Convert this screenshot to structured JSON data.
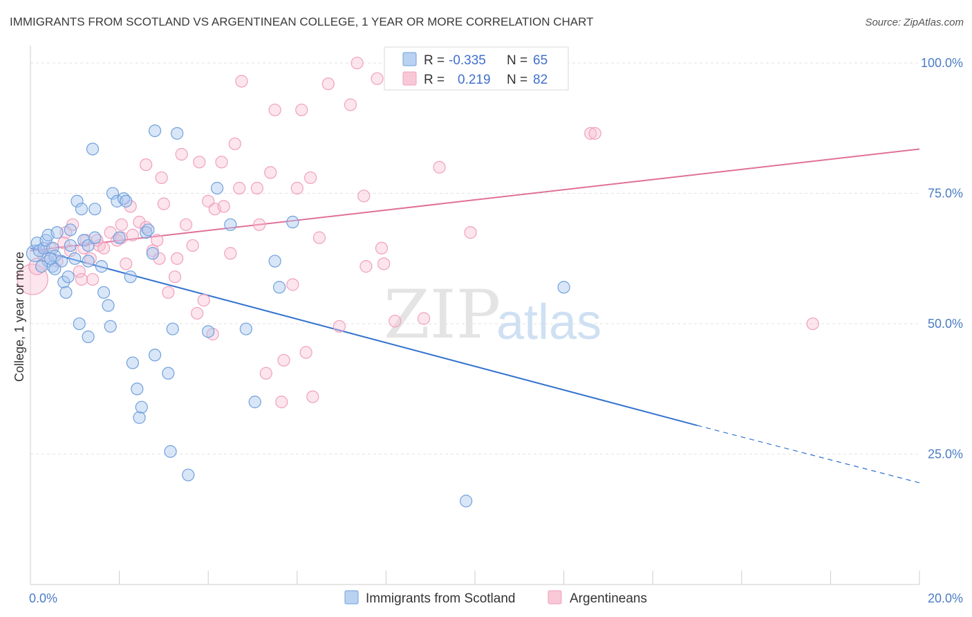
{
  "title": "IMMIGRANTS FROM SCOTLAND VS ARGENTINEAN COLLEGE, 1 YEAR OR MORE CORRELATION CHART",
  "source": "Source: ZipAtlas.com",
  "watermark": {
    "zip": "ZIP",
    "atlas": "atlas"
  },
  "colors": {
    "blue": "#6fa0dc",
    "blue_line": "#3473cf",
    "pink": "#f0a0bd",
    "pink_line": "#e07099",
    "tick": "#4a7cc4"
  },
  "legend": {
    "blue": {
      "r_label": "R =",
      "r_value": "-0.335",
      "n_label": "N =",
      "n_value": "65"
    },
    "pink": {
      "r_label": "R =",
      "r_value": "0.219",
      "n_label": "N =",
      "n_value": "82"
    }
  },
  "bottom_legend": [
    "Immigrants from Scotland",
    "Argentineans"
  ],
  "chart_data": {
    "type": "scatter",
    "title": "IMMIGRANTS FROM SCOTLAND VS ARGENTINEAN COLLEGE, 1 YEAR OR MORE CORRELATION CHART",
    "xlabel": "",
    "ylabel": "College, 1 year or more",
    "xlim": [
      0,
      20
    ],
    "ylim": [
      0,
      102
    ],
    "x_tick_labels": [
      "0.0%",
      "20.0%"
    ],
    "y_ticks": [
      25,
      50,
      75,
      100
    ],
    "y_tick_labels": [
      "25.0%",
      "50.0%",
      "75.0%",
      "100.0%"
    ],
    "grid": "horizontal dashed",
    "legend_position": "top-center",
    "series": [
      {
        "name": "Immigrants from Scotland",
        "color": "#6fa0dc",
        "r": -0.335,
        "n": 65,
        "trend": {
          "x0": 0.0,
          "y0": 64.5,
          "x1": 15.0,
          "y1": 30.5,
          "dash_to_x": 20.0,
          "dash_to_y": 19.5
        },
        "points": [
          [
            0.1,
            63.5
          ],
          [
            0.15,
            65.5
          ],
          [
            0.2,
            64
          ],
          [
            0.3,
            64.5
          ],
          [
            0.35,
            66
          ],
          [
            0.4,
            67
          ],
          [
            0.4,
            62
          ],
          [
            0.5,
            64.5
          ],
          [
            0.5,
            61
          ],
          [
            0.55,
            63
          ],
          [
            0.6,
            67.5
          ],
          [
            0.7,
            62
          ],
          [
            0.75,
            58
          ],
          [
            0.8,
            56
          ],
          [
            0.85,
            59
          ],
          [
            0.9,
            68
          ],
          [
            1.0,
            62.5
          ],
          [
            1.05,
            73.5
          ],
          [
            1.15,
            72
          ],
          [
            1.2,
            66
          ],
          [
            1.3,
            62
          ],
          [
            1.3,
            65
          ],
          [
            1.45,
            66.5
          ],
          [
            1.45,
            72
          ],
          [
            1.4,
            83.5
          ],
          [
            1.6,
            61
          ],
          [
            1.65,
            56
          ],
          [
            1.75,
            53.5
          ],
          [
            1.8,
            49.5
          ],
          [
            1.85,
            75
          ],
          [
            1.95,
            73.5
          ],
          [
            2.1,
            74
          ],
          [
            2.15,
            73.5
          ],
          [
            2.0,
            66.5
          ],
          [
            2.25,
            59
          ],
          [
            2.3,
            42.5
          ],
          [
            2.4,
            37.5
          ],
          [
            2.45,
            32
          ],
          [
            2.5,
            34
          ],
          [
            2.6,
            67.5
          ],
          [
            2.65,
            68
          ],
          [
            2.75,
            63.5
          ],
          [
            2.8,
            87
          ],
          [
            2.8,
            44
          ],
          [
            3.1,
            40.5
          ],
          [
            3.15,
            25.5
          ],
          [
            3.2,
            49
          ],
          [
            3.3,
            86.5
          ],
          [
            3.55,
            21
          ],
          [
            4.0,
            48.5
          ],
          [
            4.2,
            76
          ],
          [
            4.5,
            69
          ],
          [
            4.85,
            49
          ],
          [
            5.05,
            35
          ],
          [
            5.5,
            62
          ],
          [
            5.6,
            57
          ],
          [
            5.9,
            69.5
          ],
          [
            9.8,
            16
          ],
          [
            12.0,
            57
          ],
          [
            0.55,
            60.5
          ],
          [
            1.1,
            50
          ],
          [
            1.3,
            47.5
          ],
          [
            0.9,
            65
          ],
          [
            0.25,
            61
          ],
          [
            0.45,
            62.5
          ]
        ]
      },
      {
        "name": "Argentineans",
        "color": "#f0a0bd",
        "r": 0.219,
        "n": 82,
        "trend": {
          "x0": 0.0,
          "y0": 64.0,
          "x1": 20.0,
          "y1": 83.5
        },
        "points": [
          [
            0.05,
            58.5
          ],
          [
            0.15,
            61
          ],
          [
            0.3,
            63
          ],
          [
            0.45,
            64.5
          ],
          [
            0.6,
            62
          ],
          [
            0.75,
            65.5
          ],
          [
            0.8,
            67.5
          ],
          [
            0.95,
            69
          ],
          [
            1.1,
            60
          ],
          [
            1.15,
            58.5
          ],
          [
            1.25,
            66
          ],
          [
            1.35,
            62.5
          ],
          [
            1.4,
            58.5
          ],
          [
            1.55,
            65
          ],
          [
            1.65,
            64.5
          ],
          [
            1.8,
            67.5
          ],
          [
            1.95,
            66
          ],
          [
            2.05,
            69
          ],
          [
            2.15,
            61.5
          ],
          [
            2.25,
            72.5
          ],
          [
            2.3,
            67
          ],
          [
            2.45,
            69.5
          ],
          [
            2.6,
            68.5
          ],
          [
            2.6,
            80.5
          ],
          [
            2.75,
            64
          ],
          [
            2.85,
            66
          ],
          [
            2.9,
            62.5
          ],
          [
            2.95,
            78
          ],
          [
            3.1,
            56
          ],
          [
            3.25,
            59
          ],
          [
            3.3,
            62.5
          ],
          [
            3.4,
            82.5
          ],
          [
            3.5,
            69
          ],
          [
            3.65,
            65
          ],
          [
            3.75,
            52
          ],
          [
            3.8,
            81
          ],
          [
            3.9,
            54.5
          ],
          [
            4.0,
            73.5
          ],
          [
            4.1,
            48
          ],
          [
            4.15,
            72
          ],
          [
            4.3,
            81
          ],
          [
            4.35,
            72.5
          ],
          [
            4.5,
            63.5
          ],
          [
            4.6,
            84.5
          ],
          [
            4.7,
            76
          ],
          [
            4.75,
            96.5
          ],
          [
            5.1,
            76
          ],
          [
            5.15,
            69
          ],
          [
            5.3,
            40.5
          ],
          [
            5.4,
            79
          ],
          [
            5.5,
            91
          ],
          [
            5.65,
            35
          ],
          [
            5.7,
            43
          ],
          [
            5.9,
            57.5
          ],
          [
            6.0,
            76
          ],
          [
            6.1,
            91
          ],
          [
            6.2,
            44.5
          ],
          [
            6.3,
            78
          ],
          [
            6.35,
            36
          ],
          [
            6.5,
            66.5
          ],
          [
            6.7,
            96
          ],
          [
            6.95,
            49.5
          ],
          [
            7.2,
            92
          ],
          [
            7.35,
            100
          ],
          [
            7.5,
            74.5
          ],
          [
            7.55,
            61
          ],
          [
            7.8,
            97
          ],
          [
            7.9,
            64.5
          ],
          [
            7.95,
            61.5
          ],
          [
            8.2,
            50.5
          ],
          [
            8.85,
            51
          ],
          [
            9.2,
            80
          ],
          [
            9.9,
            67.5
          ],
          [
            12.6,
            86.5
          ],
          [
            12.7,
            86.5
          ],
          [
            17.6,
            50
          ],
          [
            10.0,
            99.5
          ],
          [
            1.5,
            66
          ],
          [
            0.9,
            64
          ],
          [
            3.0,
            73
          ],
          [
            2.05,
            66.5
          ],
          [
            1.2,
            64.5
          ]
        ]
      }
    ]
  }
}
